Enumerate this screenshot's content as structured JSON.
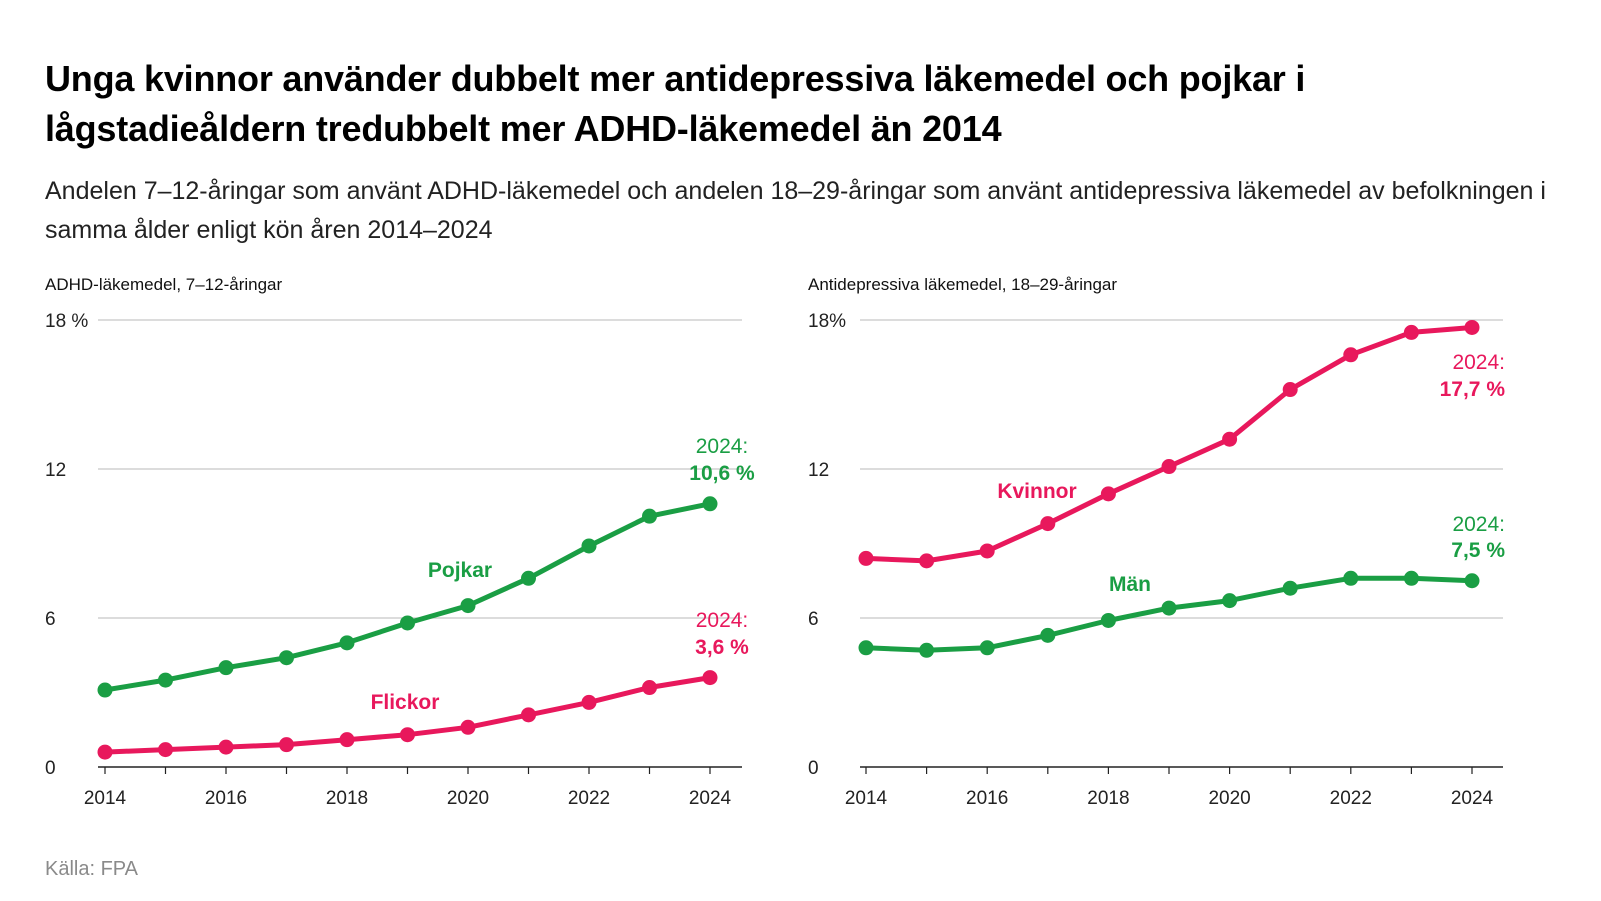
{
  "title": "Unga kvinnor använder dubbelt mer antidepressiva läkemedel och pojkar i lågstadieåldern tredubbelt mer ADHD-läkemedel än 2014",
  "subtitle": "Andelen 7–12-åringar som använt ADHD-läkemedel och andelen 18–29-åringar som använt antidepressiva läkemedel av befolkningen i samma ålder enligt kön åren 2014–2024",
  "source": "Källa: FPA",
  "colors": {
    "green": "#1a9e44",
    "pink": "#e8185c",
    "grid": "#c8c8c8",
    "axis": "#222222"
  },
  "chart_data": [
    {
      "type": "line",
      "title": "ADHD-läkemedel, 7–12-åringar",
      "x": [
        2014,
        2015,
        2016,
        2017,
        2018,
        2019,
        2020,
        2021,
        2022,
        2023,
        2024
      ],
      "x_tick_labels": [
        "2014",
        "2016",
        "2018",
        "2020",
        "2022",
        "2024"
      ],
      "y_tick_labels": [
        "0",
        "6",
        "12",
        "18 %"
      ],
      "y_ticks": [
        0,
        6,
        12,
        18
      ],
      "ylim": [
        0,
        18
      ],
      "series": [
        {
          "name": "Pojkar",
          "color": "green",
          "values": [
            3.1,
            3.5,
            4.0,
            4.4,
            5.0,
            5.8,
            6.5,
            7.6,
            8.9,
            10.1,
            10.6
          ],
          "end_label_year": "2024:",
          "end_label_value": "10,6 %"
        },
        {
          "name": "Flickor",
          "color": "pink",
          "values": [
            0.6,
            0.7,
            0.8,
            0.9,
            1.1,
            1.3,
            1.6,
            2.1,
            2.6,
            3.2,
            3.6
          ],
          "end_label_year": "2024:",
          "end_label_value": "3,6 %"
        }
      ]
    },
    {
      "type": "line",
      "title": "Antidepressiva läkemedel, 18–29-åringar",
      "x": [
        2014,
        2015,
        2016,
        2017,
        2018,
        2019,
        2020,
        2021,
        2022,
        2023,
        2024
      ],
      "x_tick_labels": [
        "2014",
        "2016",
        "2018",
        "2020",
        "2022",
        "2024"
      ],
      "y_tick_labels": [
        "0",
        "6",
        "12",
        "18%"
      ],
      "y_ticks": [
        0,
        6,
        12,
        18
      ],
      "ylim": [
        0,
        18
      ],
      "series": [
        {
          "name": "Kvinnor",
          "color": "pink",
          "values": [
            8.4,
            8.3,
            8.7,
            9.8,
            11.0,
            12.1,
            13.2,
            15.2,
            16.6,
            17.5,
            17.7
          ],
          "end_label_year": "2024:",
          "end_label_value": "17,7 %"
        },
        {
          "name": "Män",
          "color": "green",
          "values": [
            4.8,
            4.7,
            4.8,
            5.3,
            5.9,
            6.4,
            6.7,
            7.2,
            7.6,
            7.6,
            7.5
          ],
          "end_label_year": "2024:",
          "end_label_value": "7,5 %"
        }
      ]
    }
  ]
}
